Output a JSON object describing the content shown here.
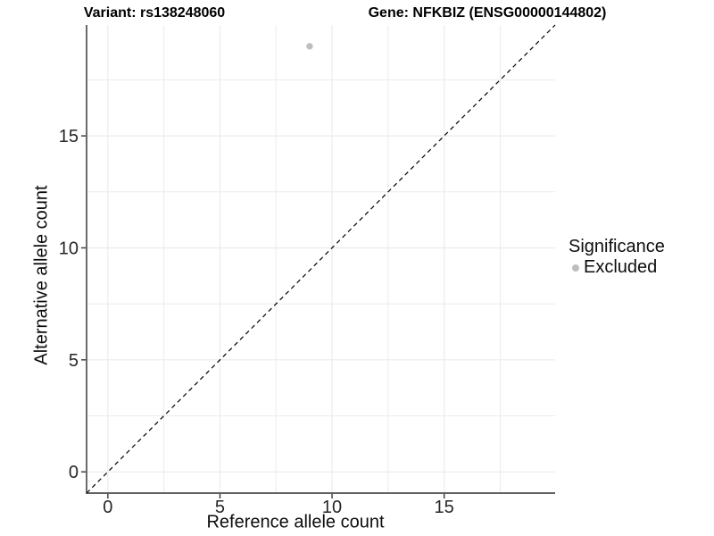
{
  "header": {
    "variant_title": "Variant: rs138248060",
    "gene_title": "Gene: NFKBIZ (ENSG00000144802)"
  },
  "legend": {
    "title": "Significance",
    "items": [
      {
        "label": "Excluded",
        "color": "#bebebe",
        "marker": "circle-icon"
      }
    ]
  },
  "chart_data": {
    "type": "scatter",
    "title": "Variant: rs138248060 — Gene: NFKBIZ (ENSG00000144802)",
    "xlabel": "Reference allele count",
    "ylabel": "Alternative allele count",
    "xlim": [
      -0.95,
      19.95
    ],
    "ylim": [
      -0.95,
      19.95
    ],
    "x_major_ticks": [
      0,
      5,
      10,
      15
    ],
    "y_major_ticks": [
      0,
      5,
      10,
      15
    ],
    "x_minor_gridlines": [
      2.5,
      7.5,
      12.5,
      17.5
    ],
    "y_minor_gridlines": [
      2.5,
      7.5,
      12.5,
      17.5
    ],
    "grid": true,
    "legend_position": "right",
    "series": [
      {
        "name": "Excluded",
        "color": "#bebebe",
        "points": [
          {
            "x": 9,
            "y": 19
          }
        ]
      }
    ],
    "reference_line": {
      "type": "identity y=x",
      "style": "dashed",
      "color": "#000000"
    },
    "colors": {
      "gridline": "#ebebeb",
      "axis_line": "#2b2b2b",
      "tick_mark": "#333333",
      "tick_label": "#262626",
      "point": "#bebebe"
    }
  }
}
